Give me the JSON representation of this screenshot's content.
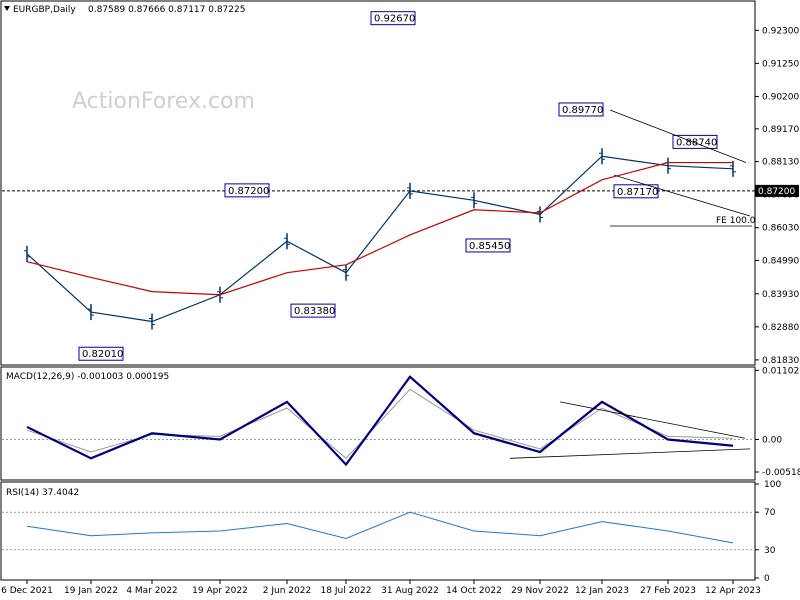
{
  "header": {
    "symbol": "EURGBP,Daily",
    "ohlc": "0.87589 0.87666 0.87117 0.87225"
  },
  "watermark": "ActionForex.com",
  "colors": {
    "price": "#003366",
    "sma": "#cc0000",
    "macd": "#000080",
    "signal": "#999999",
    "rsi": "#1f77d4",
    "label_border": "#0000aa"
  },
  "chart_data": [
    {
      "type": "candlestick",
      "title": "EURGBP,Daily",
      "ylim": [
        0.817,
        0.932
      ],
      "y_ticks": [
        "0.92300",
        "0.91250",
        "0.90200",
        "0.89170",
        "0.88130",
        "0.87090",
        "0.86030",
        "0.84990",
        "0.83930",
        "0.82880",
        "0.81830"
      ],
      "current_price_label": "0.87200",
      "x_ticks": [
        "6 Dec 2021",
        "19 Jan 2022",
        "4 Mar 2022",
        "19 Apr 2022",
        "2 Jun 2022",
        "18 Jul 2022",
        "31 Aug 2022",
        "14 Oct 2022",
        "29 Nov 2022",
        "12 Jan 2023",
        "27 Feb 2023",
        "12 Apr 2023"
      ],
      "annotations": [
        "0.92670",
        "0.89770",
        "0.88740",
        "0.87200",
        "0.87170",
        "0.85450",
        "0.83380",
        "0.82010",
        "FE 100.0"
      ],
      "series": [
        {
          "name": "EURGBP",
          "points": [
            [
              "6 Dec 2021",
              0.852
            ],
            [
              "19 Jan 2022",
              0.8335
            ],
            [
              "4 Mar 2022",
              0.8305
            ],
            [
              "19 Apr 2022",
              0.839
            ],
            [
              "2 Jun 2022",
              0.856
            ],
            [
              "18 Jul 2022",
              0.846
            ],
            [
              "31 Aug 2022",
              0.872
            ],
            [
              "14 Oct 2022",
              0.869
            ],
            [
              "29 Nov 2022",
              0.8645
            ],
            [
              "12 Jan 2023",
              0.883
            ],
            [
              "27 Feb 2023",
              0.88
            ],
            [
              "12 Apr 2023",
              0.879
            ]
          ]
        },
        {
          "name": "SMA",
          "points": [
            [
              "6 Dec 2021",
              0.8495
            ],
            [
              "19 Jan 2022",
              0.8445
            ],
            [
              "4 Mar 2022",
              0.84
            ],
            [
              "19 Apr 2022",
              0.839
            ],
            [
              "2 Jun 2022",
              0.846
            ],
            [
              "18 Jul 2022",
              0.8485
            ],
            [
              "31 Aug 2022",
              0.858
            ],
            [
              "14 Oct 2022",
              0.866
            ],
            [
              "29 Nov 2022",
              0.865
            ],
            [
              "12 Jan 2023",
              0.8755
            ],
            [
              "27 Feb 2023",
              0.881
            ],
            [
              "12 Apr 2023",
              0.881
            ]
          ]
        }
      ]
    },
    {
      "type": "line",
      "title": "MACD(12,26,9) -0.001003 0.000195",
      "ylim": [
        -0.0063,
        0.0114
      ],
      "y_ticks": [
        "0.011023",
        "0.00",
        "-0.005182"
      ],
      "zero_label": "0.00",
      "series": [
        {
          "name": "MACD",
          "points": [
            [
              "6 Dec 2021",
              0.002
            ],
            [
              "19 Jan 2022",
              -0.003
            ],
            [
              "4 Mar 2022",
              0.001
            ],
            [
              "19 Apr 2022",
              0.0
            ],
            [
              "2 Jun 2022",
              0.006
            ],
            [
              "18 Jul 2022",
              -0.004
            ],
            [
              "31 Aug 2022",
              0.01
            ],
            [
              "14 Oct 2022",
              0.001
            ],
            [
              "29 Nov 2022",
              -0.002
            ],
            [
              "12 Jan 2023",
              0.006
            ],
            [
              "27 Feb 2023",
              0.0
            ],
            [
              "12 Apr 2023",
              -0.001
            ]
          ]
        },
        {
          "name": "Signal",
          "points": [
            [
              "6 Dec 2021",
              0.0015
            ],
            [
              "19 Jan 2022",
              -0.002
            ],
            [
              "4 Mar 2022",
              0.0008
            ],
            [
              "19 Apr 2022",
              0.0005
            ],
            [
              "2 Jun 2022",
              0.005
            ],
            [
              "18 Jul 2022",
              -0.003
            ],
            [
              "31 Aug 2022",
              0.008
            ],
            [
              "14 Oct 2022",
              0.0015
            ],
            [
              "29 Nov 2022",
              -0.0015
            ],
            [
              "12 Jan 2023",
              0.005
            ],
            [
              "27 Feb 2023",
              0.0005
            ],
            [
              "12 Apr 2023",
              0.0002
            ]
          ]
        }
      ]
    },
    {
      "type": "line",
      "title": "RSI(14) 37.4042",
      "ylim": [
        0,
        100
      ],
      "y_ticks": [
        "100",
        "70",
        "30",
        "0"
      ],
      "series": [
        {
          "name": "RSI",
          "points": [
            [
              "6 Dec 2021",
              55
            ],
            [
              "19 Jan 2022",
              45
            ],
            [
              "4 Mar 2022",
              48
            ],
            [
              "19 Apr 2022",
              50
            ],
            [
              "2 Jun 2022",
              58
            ],
            [
              "18 Jul 2022",
              42
            ],
            [
              "31 Aug 2022",
              70
            ],
            [
              "14 Oct 2022",
              50
            ],
            [
              "29 Nov 2022",
              45
            ],
            [
              "12 Jan 2023",
              60
            ],
            [
              "27 Feb 2023",
              50
            ],
            [
              "12 Apr 2023",
              37.4042
            ]
          ]
        }
      ]
    }
  ]
}
